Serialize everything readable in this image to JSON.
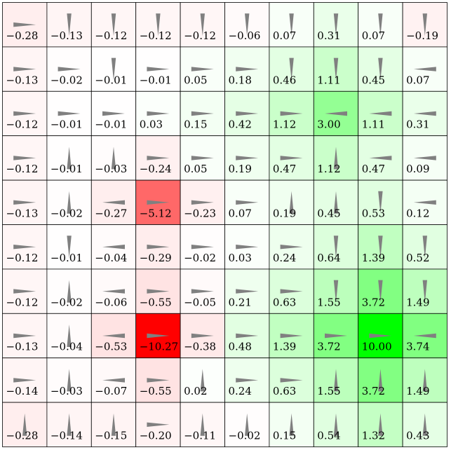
{
  "grid": {
    "rows": 10,
    "cols": 10,
    "colors": {
      "positive": "#00ff00",
      "negative": "#ff0000",
      "neutral": "#ffffff",
      "line": "#000000",
      "arrow": "#808080"
    },
    "cells": [
      [
        {
          "v": "−0.28",
          "d": "right"
        },
        {
          "v": "−0.13",
          "d": "down"
        },
        {
          "v": "−0.12",
          "d": "down"
        },
        {
          "v": "−0.12",
          "d": "down"
        },
        {
          "v": "−0.12",
          "d": "down"
        },
        {
          "v": "−0.06",
          "d": "down"
        },
        {
          "v": "0.07",
          "d": "down"
        },
        {
          "v": "0.31",
          "d": "down"
        },
        {
          "v": "0.07",
          "d": "down"
        },
        {
          "v": "−0.19",
          "d": "down"
        }
      ],
      [
        {
          "v": "−0.13",
          "d": "right"
        },
        {
          "v": "−0.02",
          "d": "right"
        },
        {
          "v": "−0.01",
          "d": "down"
        },
        {
          "v": "−0.01",
          "d": "right"
        },
        {
          "v": "0.05",
          "d": "right"
        },
        {
          "v": "0.18",
          "d": "right"
        },
        {
          "v": "0.46",
          "d": "down"
        },
        {
          "v": "1.11",
          "d": "down"
        },
        {
          "v": "0.45",
          "d": "down"
        },
        {
          "v": "0.07",
          "d": "left"
        }
      ],
      [
        {
          "v": "−0.12",
          "d": "right"
        },
        {
          "v": "−0.01",
          "d": "right"
        },
        {
          "v": "−0.01",
          "d": "right"
        },
        {
          "v": "0.03",
          "d": "right"
        },
        {
          "v": "0.15",
          "d": "right"
        },
        {
          "v": "0.42",
          "d": "right"
        },
        {
          "v": "1.12",
          "d": "right"
        },
        {
          "v": "3.00",
          "d": "left"
        },
        {
          "v": "1.11",
          "d": "left"
        },
        {
          "v": "0.31",
          "d": "left"
        }
      ],
      [
        {
          "v": "−0.12",
          "d": "right"
        },
        {
          "v": "−0.01",
          "d": "up"
        },
        {
          "v": "−0.03",
          "d": "up"
        },
        {
          "v": "−0.24",
          "d": "right"
        },
        {
          "v": "0.05",
          "d": "right"
        },
        {
          "v": "0.19",
          "d": "right"
        },
        {
          "v": "0.47",
          "d": "right"
        },
        {
          "v": "1.12",
          "d": "up"
        },
        {
          "v": "0.47",
          "d": "left"
        },
        {
          "v": "0.09",
          "d": "left"
        }
      ],
      [
        {
          "v": "−0.13",
          "d": "right"
        },
        {
          "v": "−0.02",
          "d": "up"
        },
        {
          "v": "−0.27",
          "d": "left"
        },
        {
          "v": "−5.12",
          "d": "right"
        },
        {
          "v": "−0.23",
          "d": "right"
        },
        {
          "v": "0.07",
          "d": "right"
        },
        {
          "v": "0.19",
          "d": "up"
        },
        {
          "v": "0.45",
          "d": "up"
        },
        {
          "v": "0.53",
          "d": "down"
        },
        {
          "v": "0.12",
          "d": "left"
        }
      ],
      [
        {
          "v": "−0.12",
          "d": "right"
        },
        {
          "v": "−0.01",
          "d": "down"
        },
        {
          "v": "−0.04",
          "d": "left"
        },
        {
          "v": "−0.29",
          "d": "right"
        },
        {
          "v": "−0.02",
          "d": "right"
        },
        {
          "v": "0.03",
          "d": "right"
        },
        {
          "v": "0.24",
          "d": "right"
        },
        {
          "v": "0.64",
          "d": "down"
        },
        {
          "v": "1.39",
          "d": "down"
        },
        {
          "v": "0.52",
          "d": "down"
        }
      ],
      [
        {
          "v": "−0.12",
          "d": "right"
        },
        {
          "v": "−0.02",
          "d": "up"
        },
        {
          "v": "−0.06",
          "d": "left"
        },
        {
          "v": "−0.55",
          "d": "right"
        },
        {
          "v": "−0.05",
          "d": "right"
        },
        {
          "v": "0.21",
          "d": "right"
        },
        {
          "v": "0.63",
          "d": "right"
        },
        {
          "v": "1.55",
          "d": "down"
        },
        {
          "v": "3.72",
          "d": "down"
        },
        {
          "v": "1.49",
          "d": "down"
        }
      ],
      [
        {
          "v": "−0.13",
          "d": "right"
        },
        {
          "v": "−0.04",
          "d": "up"
        },
        {
          "v": "−0.53",
          "d": "left"
        },
        {
          "v": "−10.27",
          "d": "right"
        },
        {
          "v": "−0.38",
          "d": "right"
        },
        {
          "v": "0.48",
          "d": "right"
        },
        {
          "v": "1.39",
          "d": "right"
        },
        {
          "v": "3.72",
          "d": "right"
        },
        {
          "v": "10.00",
          "d": "right"
        },
        {
          "v": "3.74",
          "d": "left"
        }
      ],
      [
        {
          "v": "−0.14",
          "d": "right"
        },
        {
          "v": "−0.03",
          "d": "up"
        },
        {
          "v": "−0.07",
          "d": "left"
        },
        {
          "v": "−0.55",
          "d": "right"
        },
        {
          "v": "0.02",
          "d": "up"
        },
        {
          "v": "0.24",
          "d": "right"
        },
        {
          "v": "0.63",
          "d": "right"
        },
        {
          "v": "1.55",
          "d": "up"
        },
        {
          "v": "3.72",
          "d": "up"
        },
        {
          "v": "1.49",
          "d": "up"
        }
      ],
      [
        {
          "v": "−0.28",
          "d": "up"
        },
        {
          "v": "−0.14",
          "d": "up"
        },
        {
          "v": "−0.15",
          "d": "up"
        },
        {
          "v": "−0.20",
          "d": "right"
        },
        {
          "v": "−0.11",
          "d": "up"
        },
        {
          "v": "−0.02",
          "d": "up"
        },
        {
          "v": "0.15",
          "d": "up"
        },
        {
          "v": "0.54",
          "d": "up"
        },
        {
          "v": "1.32",
          "d": "up"
        },
        {
          "v": "0.43",
          "d": "up"
        }
      ]
    ]
  }
}
